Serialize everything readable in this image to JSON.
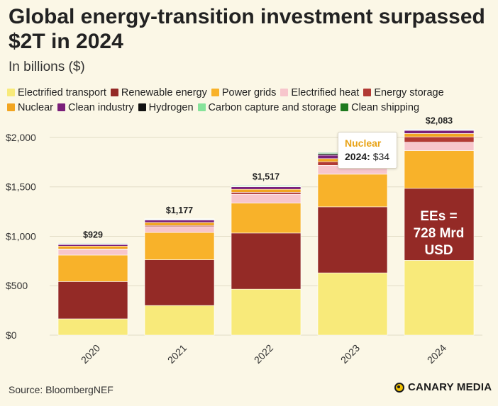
{
  "title": "Global energy-transition investment surpassed $2T in 2024",
  "subtitle": "In billions ($)",
  "source": "Source: BloombergNEF",
  "brand": "CANARY MEDIA",
  "tooltip": {
    "series": "Nuclear",
    "year_label": "2024:",
    "value_label": "$34"
  },
  "annotation": {
    "line1": "EEs =",
    "line2": "728 Mrd",
    "line3": "USD"
  },
  "colors": {
    "background": "#fbf7e6",
    "grid": "#e2dcc6"
  },
  "legend_rows": [
    [
      {
        "name": "Electrified transport",
        "color": "#f8ea7a"
      },
      {
        "name": "Renewable energy",
        "color": "#942a26"
      },
      {
        "name": "Power grids",
        "color": "#f8b22a"
      },
      {
        "name": "Electrified heat",
        "color": "#f7c6cc"
      },
      {
        "name": "Energy storage",
        "color": "#b23a34"
      }
    ],
    [
      {
        "name": "Nuclear",
        "color": "#f2a520"
      },
      {
        "name": "Clean industry",
        "color": "#7a1f7a"
      },
      {
        "name": "Hydrogen",
        "color": "#111111"
      },
      {
        "name": "Carbon capture and storage",
        "color": "#86e39a"
      },
      {
        "name": "Clean shipping",
        "color": "#1e7a1e"
      }
    ]
  ],
  "chart_data": {
    "type": "bar",
    "stacked": true,
    "title": "Global energy-transition investment surpassed $2T in 2024",
    "ylabel": "In billions ($)",
    "ylim": [
      0,
      2100
    ],
    "yticks": [
      0,
      500,
      1000,
      1500,
      2000
    ],
    "ytick_labels": [
      "$0",
      "$500",
      "$1,000",
      "$1,500",
      "$2,000"
    ],
    "categories": [
      "2020",
      "2021",
      "2022",
      "2023",
      "2024"
    ],
    "totals": [
      929,
      1177,
      1517,
      1850,
      2083
    ],
    "total_labels": [
      "$929",
      "$1,177",
      "$1,517",
      "",
      "$2,083"
    ],
    "series": [
      {
        "name": "Electrified transport",
        "color": "#f8ea7a",
        "values": [
          165,
          300,
          465,
          630,
          757
        ]
      },
      {
        "name": "Renewable energy",
        "color": "#942a26",
        "values": [
          377,
          463,
          568,
          668,
          728
        ]
      },
      {
        "name": "Power grids",
        "color": "#f8b22a",
        "values": [
          268,
          275,
          302,
          330,
          382
        ]
      },
      {
        "name": "Electrified heat",
        "color": "#f7c6cc",
        "values": [
          55,
          60,
          90,
          90,
          85
        ]
      },
      {
        "name": "Energy storage",
        "color": "#b23a34",
        "values": [
          6,
          11,
          20,
          36,
          54
        ]
      },
      {
        "name": "Nuclear",
        "color": "#f2a520",
        "values": [
          30,
          31,
          30,
          32,
          34
        ]
      },
      {
        "name": "Clean industry",
        "color": "#7a1f7a",
        "values": [
          15,
          25,
          25,
          35,
          30
        ]
      },
      {
        "name": "Hydrogen",
        "color": "#111111",
        "values": [
          3,
          3,
          4,
          15,
          5
        ]
      },
      {
        "name": "Carbon capture and storage",
        "color": "#86e39a",
        "values": [
          5,
          5,
          8,
          8,
          5
        ]
      },
      {
        "name": "Clean shipping",
        "color": "#1e7a1e",
        "values": [
          5,
          4,
          5,
          6,
          3
        ]
      }
    ]
  }
}
